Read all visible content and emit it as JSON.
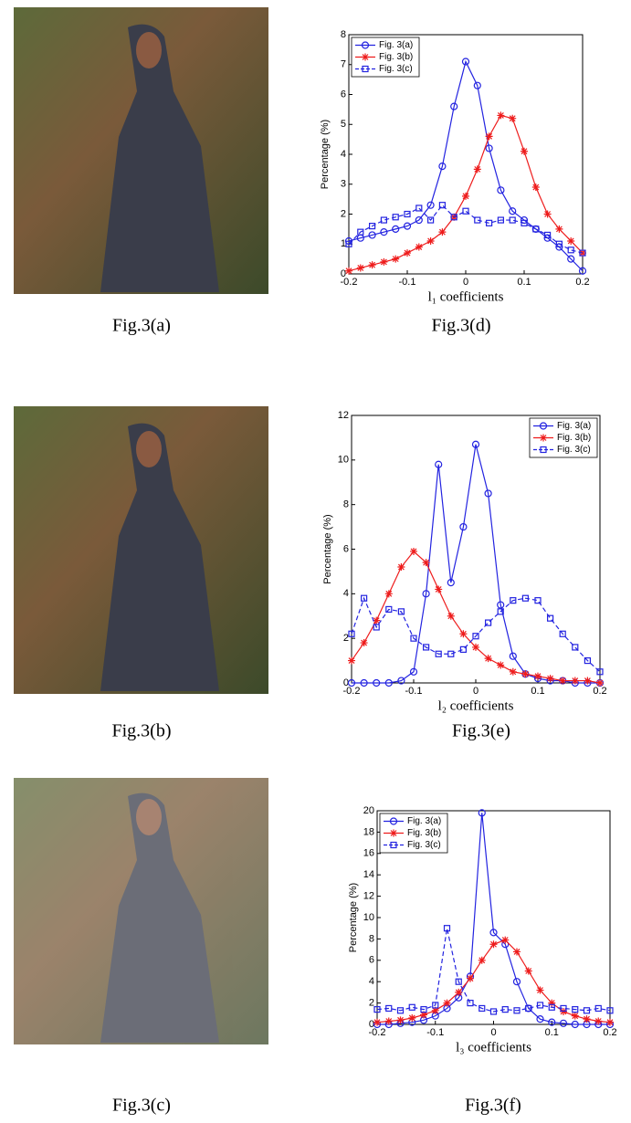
{
  "captions": [
    "Fig.3(a)",
    "Fig.3(d)",
    "Fig.3(b)",
    "Fig.3(e)",
    "Fig.3(c)",
    "Fig.3(f)"
  ],
  "chart_data": [
    {
      "type": "line",
      "xlabel": "l₁ coefficients",
      "ylabel": "Percentage (%)",
      "legend": "upper left",
      "x": [
        -0.2,
        -0.18,
        -0.16,
        -0.14,
        -0.12,
        -0.1,
        -0.08,
        -0.06,
        -0.04,
        -0.02,
        0,
        0.02,
        0.04,
        0.06,
        0.08,
        0.1,
        0.12,
        0.14,
        0.16,
        0.18,
        0.2
      ],
      "xlim": [
        -0.2,
        0.2
      ],
      "xticks": [
        -0.2,
        -0.1,
        0,
        0.1,
        0.2
      ],
      "ylim": [
        0,
        8
      ],
      "yticks": [
        0,
        1,
        2,
        3,
        4,
        5,
        6,
        7,
        8
      ],
      "series": [
        {
          "name": "Fig. 3(a)",
          "color": "#2323e0",
          "marker": "o",
          "linestyle": "solid",
          "values": [
            1.1,
            1.2,
            1.3,
            1.4,
            1.5,
            1.6,
            1.8,
            2.3,
            3.6,
            5.6,
            7.1,
            6.3,
            4.2,
            2.8,
            2.1,
            1.8,
            1.5,
            1.2,
            0.9,
            0.5,
            0.1
          ]
        },
        {
          "name": "Fig. 3(b)",
          "color": "#ee1c1c",
          "marker": "*",
          "linestyle": "solid",
          "values": [
            0.1,
            0.2,
            0.3,
            0.4,
            0.5,
            0.7,
            0.9,
            1.1,
            1.4,
            1.9,
            2.6,
            3.5,
            4.6,
            5.3,
            5.2,
            4.1,
            2.9,
            2.0,
            1.5,
            1.1,
            0.7
          ]
        },
        {
          "name": "Fig. 3(c)",
          "color": "#2323e0",
          "marker": "s",
          "linestyle": "dashed",
          "values": [
            1.0,
            1.4,
            1.6,
            1.8,
            1.9,
            2.0,
            2.2,
            1.8,
            2.3,
            1.9,
            2.1,
            1.8,
            1.7,
            1.8,
            1.8,
            1.7,
            1.5,
            1.3,
            1.0,
            0.8,
            0.7
          ]
        }
      ]
    },
    {
      "type": "line",
      "xlabel": "l₂ coefficients",
      "ylabel": "Percentage (%)",
      "legend": "upper right",
      "x": [
        -0.2,
        -0.18,
        -0.16,
        -0.14,
        -0.12,
        -0.1,
        -0.08,
        -0.06,
        -0.04,
        -0.02,
        0,
        0.02,
        0.04,
        0.06,
        0.08,
        0.1,
        0.12,
        0.14,
        0.16,
        0.18,
        0.2
      ],
      "xlim": [
        -0.2,
        0.2
      ],
      "xticks": [
        -0.2,
        -0.1,
        0,
        0.1,
        0.2
      ],
      "ylim": [
        0,
        12
      ],
      "yticks": [
        0,
        2,
        4,
        6,
        8,
        10,
        12
      ],
      "series": [
        {
          "name": "Fig. 3(a)",
          "color": "#2323e0",
          "marker": "o",
          "linestyle": "solid",
          "values": [
            0,
            0,
            0,
            0,
            0.1,
            0.5,
            4,
            9.8,
            4.5,
            7,
            10.7,
            8.5,
            3.5,
            1.2,
            0.4,
            0.2,
            0.1,
            0.1,
            0,
            0,
            0
          ]
        },
        {
          "name": "Fig. 3(b)",
          "color": "#ee1c1c",
          "marker": "*",
          "linestyle": "solid",
          "values": [
            1.0,
            1.8,
            2.8,
            4,
            5.2,
            5.9,
            5.4,
            4.2,
            3.0,
            2.2,
            1.6,
            1.1,
            0.8,
            0.5,
            0.4,
            0.3,
            0.2,
            0.1,
            0.1,
            0.1,
            0
          ]
        },
        {
          "name": "Fig. 3(c)",
          "color": "#2323e0",
          "marker": "s",
          "linestyle": "dashed",
          "values": [
            2.2,
            3.8,
            2.5,
            3.3,
            3.2,
            2.0,
            1.6,
            1.3,
            1.3,
            1.5,
            2.1,
            2.7,
            3.2,
            3.7,
            3.8,
            3.7,
            2.9,
            2.2,
            1.6,
            1.0,
            0.5
          ]
        }
      ]
    },
    {
      "type": "line",
      "xlabel": "l₃ coefficients",
      "ylabel": "Percentage (%)",
      "legend": "upper left",
      "x": [
        -0.2,
        -0.18,
        -0.16,
        -0.14,
        -0.12,
        -0.1,
        -0.08,
        -0.06,
        -0.04,
        -0.02,
        0,
        0.02,
        0.04,
        0.06,
        0.08,
        0.1,
        0.12,
        0.14,
        0.16,
        0.18,
        0.2
      ],
      "xlim": [
        -0.2,
        0.2
      ],
      "xticks": [
        -0.2,
        -0.1,
        0,
        0.1,
        0.2
      ],
      "ylim": [
        0,
        20
      ],
      "yticks": [
        0,
        2,
        4,
        6,
        8,
        10,
        12,
        14,
        16,
        18,
        20
      ],
      "series": [
        {
          "name": "Fig. 3(a)",
          "color": "#2323e0",
          "marker": "o",
          "linestyle": "solid",
          "values": [
            0,
            0,
            0.1,
            0.2,
            0.4,
            0.8,
            1.5,
            2.5,
            4.5,
            19.8,
            8.6,
            7.5,
            4,
            1.5,
            0.5,
            0.2,
            0.1,
            0,
            0,
            0,
            0
          ]
        },
        {
          "name": "Fig. 3(b)",
          "color": "#ee1c1c",
          "marker": "*",
          "linestyle": "solid",
          "values": [
            0.2,
            0.3,
            0.4,
            0.6,
            0.9,
            1.3,
            2.0,
            3.0,
            4.3,
            6.0,
            7.5,
            7.9,
            6.8,
            5.0,
            3.2,
            2.0,
            1.2,
            0.8,
            0.5,
            0.3,
            0.2
          ]
        },
        {
          "name": "Fig. 3(c)",
          "color": "#2323e0",
          "marker": "s",
          "linestyle": "dashed",
          "values": [
            1.4,
            1.5,
            1.3,
            1.6,
            1.4,
            1.8,
            9.0,
            4.0,
            2.0,
            1.5,
            1.2,
            1.4,
            1.3,
            1.5,
            1.8,
            1.6,
            1.5,
            1.4,
            1.3,
            1.5,
            1.3
          ]
        }
      ]
    }
  ]
}
